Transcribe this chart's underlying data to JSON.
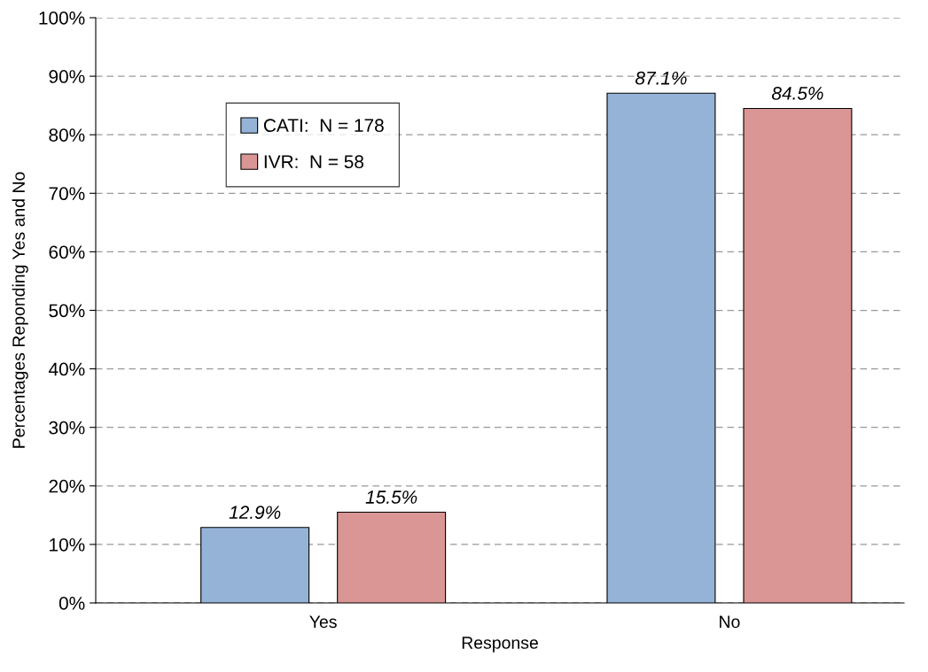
{
  "chart_data": {
    "type": "bar",
    "xlabel": "Response",
    "ylabel": "Percentages Reponding Yes and No",
    "categories": [
      "Yes",
      "No"
    ],
    "series": [
      {
        "name": "CATI:  N = 178",
        "color": "#95b3d7",
        "values": [
          12.9,
          87.1
        ],
        "value_labels": [
          "12.9%",
          "87.1%"
        ]
      },
      {
        "name": "IVR:  N = 58",
        "color": "#d99694",
        "values": [
          15.5,
          84.5
        ],
        "value_labels": [
          "15.5%",
          "84.5%"
        ]
      }
    ],
    "ylim": [
      0,
      100
    ],
    "yticks": [
      {
        "value": 0,
        "label": "0%"
      },
      {
        "value": 10,
        "label": "10%"
      },
      {
        "value": 20,
        "label": "20%"
      },
      {
        "value": 30,
        "label": "30%"
      },
      {
        "value": 40,
        "label": "40%"
      },
      {
        "value": 50,
        "label": "50%"
      },
      {
        "value": 60,
        "label": "60%"
      },
      {
        "value": 70,
        "label": "70%"
      },
      {
        "value": 80,
        "label": "80%"
      },
      {
        "value": 90,
        "label": "90%"
      },
      {
        "value": 100,
        "label": "100%"
      }
    ],
    "grid": "y",
    "legend": "top left",
    "line_style": "dashed"
  }
}
